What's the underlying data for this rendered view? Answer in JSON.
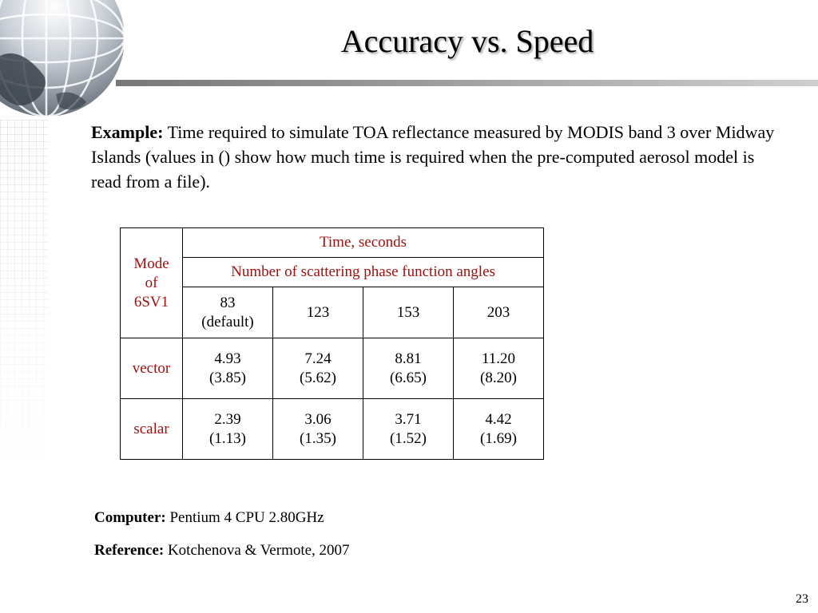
{
  "slide": {
    "title": "Accuracy vs. Speed",
    "page_number": "23"
  },
  "example": {
    "label": "Example:",
    "text": "Time required to simulate TOA reflectance measured by MODIS band 3 over Midway Islands (values in () show how much time is required when the pre-computed aerosol model is read from a file)."
  },
  "table": {
    "mode_header": [
      "Mode",
      "of",
      "6SV1"
    ],
    "time_header": "Time, seconds",
    "angles_header": "Number of scattering phase function angles",
    "angle_columns": [
      [
        "83",
        "(default)"
      ],
      [
        "123"
      ],
      [
        "153"
      ],
      [
        "203"
      ]
    ],
    "rows": [
      {
        "mode": "vector",
        "values": [
          [
            "4.93",
            "(3.85)"
          ],
          [
            "7.24",
            "(5.62)"
          ],
          [
            "8.81",
            "(6.65)"
          ],
          [
            "11.20",
            "(8.20)"
          ]
        ]
      },
      {
        "mode": "scalar",
        "values": [
          [
            "2.39",
            "(1.13)"
          ],
          [
            "3.06",
            "(1.35)"
          ],
          [
            "3.71",
            "(1.52)"
          ],
          [
            "4.42",
            "(1.69)"
          ]
        ]
      }
    ]
  },
  "computer": {
    "label": "Computer:",
    "value": "Pentium 4 CPU 2.80GHz"
  },
  "reference": {
    "label": "Reference:",
    "value": "Kotchenova & Vermote, 2007"
  },
  "colors": {
    "header_text": "#a01010",
    "title_rule": "#888888"
  },
  "decor": {
    "icon": "globe-icon"
  }
}
